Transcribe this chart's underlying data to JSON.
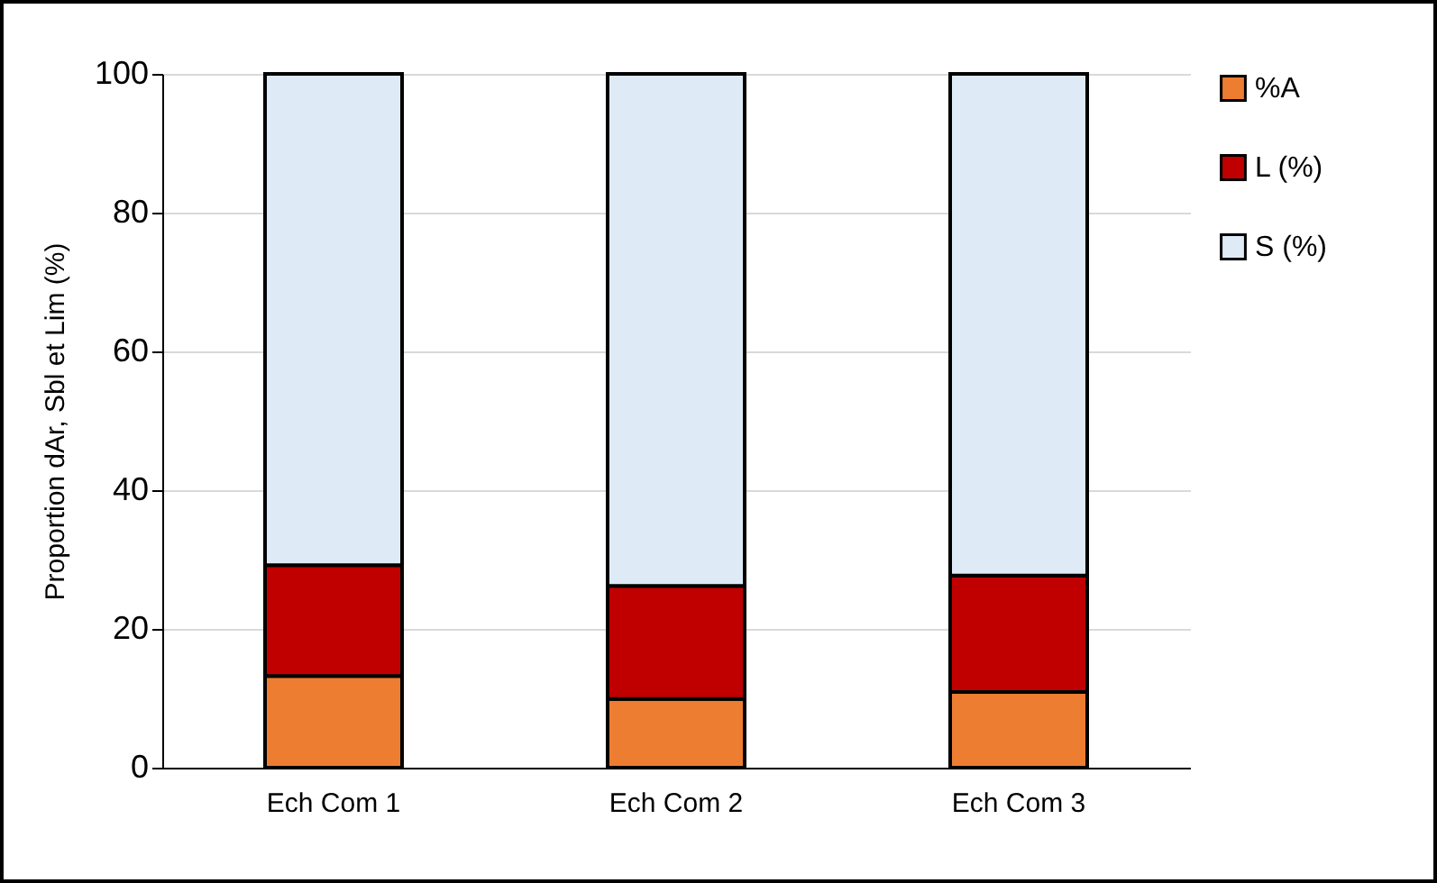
{
  "chart_data": {
    "type": "bar",
    "ylabel": "Proportion dAr, Sbl et Lim (%)",
    "categories": [
      "Ech Com 1",
      "Ech Com 2",
      "Ech Com 3"
    ],
    "stacked": true,
    "series": [
      {
        "name": "%A",
        "color": "#ed7d31",
        "values": [
          13.2,
          9.9,
          10.9
        ]
      },
      {
        "name": "L (%)",
        "color": "#c00000",
        "values": [
          16.0,
          16.3,
          16.8
        ]
      },
      {
        "name": "S (%)",
        "color": "#deebf7",
        "values": [
          70.8,
          73.8,
          72.3
        ]
      }
    ],
    "ylim": [
      0,
      100
    ],
    "yticks": [
      0,
      20,
      40,
      60,
      80,
      100
    ],
    "grid": "y",
    "legend": "right"
  }
}
